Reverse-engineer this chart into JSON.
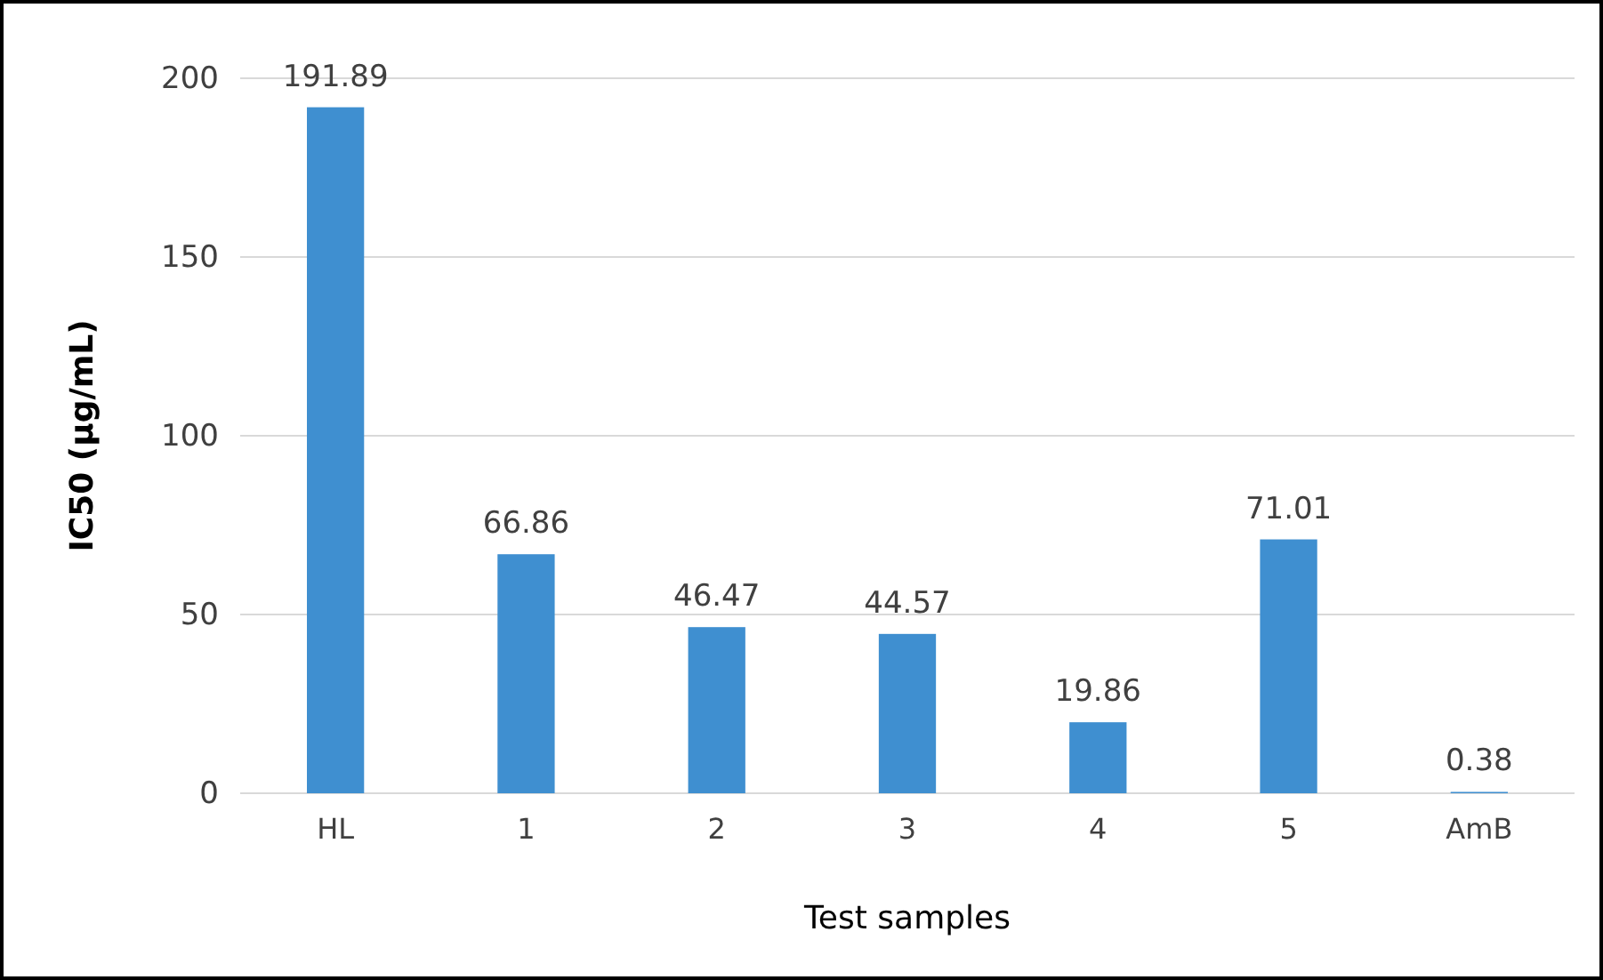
{
  "chart_data": {
    "type": "bar",
    "xlabel": "Test samples",
    "ylabel": "IC50 (µg/mL)",
    "categories": [
      "HL",
      "1",
      "2",
      "3",
      "4",
      "5",
      "AmB"
    ],
    "values": [
      191.89,
      66.86,
      46.47,
      44.57,
      19.86,
      71.01,
      0.38
    ],
    "color": "#3f8fd0",
    "ylim": [
      0,
      200
    ],
    "yticks": [
      0,
      50,
      100,
      150,
      200
    ],
    "grid": "y",
    "data_labels": true
  }
}
